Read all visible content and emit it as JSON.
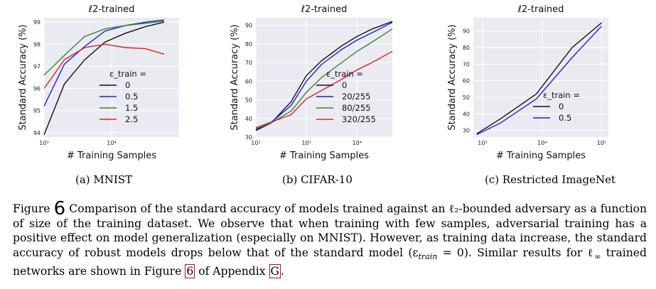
{
  "caption": {
    "label": "Figure",
    "number": "6",
    "text_before": "Comparison of the standard accuracy of models trained against an ℓ₂-bounded adversary as a function of size of the training dataset. We observe that when training with few samples, adversarial training has a positive effect on model generalization (especially on MNIST). However, as training data increase, the standard accuracy of robust models drops below that of the standard model (ε",
    "eps_sub": "train",
    "text_mid": " = 0). Similar results for ℓ",
    "inf_sub": "∞",
    "text_after": " trained networks are shown in Figure ",
    "ref_figure": "6",
    "text_after2": " of Appendix ",
    "ref_appendix": "G",
    "text_end": "."
  },
  "colors": {
    "black": "#111111",
    "blue": "#1f1fe0",
    "green": "#2e8b2e",
    "red": "#e02020",
    "plot_bg": "#eaeaf2",
    "grid": "#ffffff"
  },
  "chart_data": [
    {
      "type": "line",
      "title": "ℓ2-trained",
      "xlabel": "# Training Samples",
      "ylabel": "Standard Accuracy (%)",
      "subcaption": "(a) MNIST",
      "x_scale": "log",
      "xlim": [
        1000,
        100000
      ],
      "ylim": [
        93.8,
        99.2
      ],
      "xticks": [
        1000,
        10000
      ],
      "xtick_labels": [
        "10³",
        "10⁴"
      ],
      "yticks": [
        94,
        95,
        96,
        97,
        98,
        99
      ],
      "legend_title": "ε_train =",
      "legend_position": "bottom-right",
      "x": [
        1000,
        2000,
        4000,
        8000,
        16000,
        32000,
        60000
      ],
      "series": [
        {
          "name": "0",
          "color": "#111111",
          "values": [
            93.9,
            96.2,
            97.3,
            98.1,
            98.5,
            98.8,
            99.0
          ]
        },
        {
          "name": "0.5",
          "color": "#1f1fe0",
          "values": [
            95.2,
            97.1,
            97.9,
            98.6,
            98.85,
            99.0,
            99.1
          ]
        },
        {
          "name": "1.5",
          "color": "#2e8b2e",
          "values": [
            96.6,
            97.5,
            98.35,
            98.7,
            98.85,
            98.95,
            99.05
          ]
        },
        {
          "name": "2.5",
          "color": "#e02020",
          "values": [
            96.0,
            97.3,
            97.85,
            98.0,
            97.85,
            97.8,
            97.55
          ]
        }
      ]
    },
    {
      "type": "line",
      "title": "ℓ2-trained",
      "xlabel": "# Training Samples",
      "ylabel": "Standard Accuracy (%)",
      "subcaption": "(b) CIFAR-10",
      "x_scale": "log",
      "xlim": [
        100,
        50000
      ],
      "ylim": [
        30,
        94
      ],
      "xticks": [
        100,
        1000,
        10000
      ],
      "xtick_labels": [
        "10²",
        "10³",
        "10⁴"
      ],
      "yticks": [
        30,
        40,
        50,
        60,
        70,
        80,
        90
      ],
      "legend_title": "ε_train =",
      "legend_position": "bottom-right",
      "x": [
        100,
        200,
        500,
        1000,
        2000,
        5000,
        10000,
        20000,
        50000
      ],
      "series": [
        {
          "name": "0",
          "color": "#111111",
          "values": [
            33.5,
            37.5,
            49,
            63,
            71,
            79,
            84,
            88,
            92
          ]
        },
        {
          "name": "20/255",
          "color": "#1f1fe0",
          "values": [
            34,
            37.8,
            47,
            60,
            69,
            77,
            82,
            86,
            91.5
          ]
        },
        {
          "name": "80/255",
          "color": "#2e8b2e",
          "values": [
            34.5,
            37.5,
            44,
            54,
            62,
            70,
            76,
            81,
            88
          ]
        },
        {
          "name": "320/255",
          "color": "#e02020",
          "values": [
            35,
            38,
            42,
            50.5,
            55,
            61,
            66,
            70,
            76
          ]
        }
      ]
    },
    {
      "type": "line",
      "title": "ℓ2-trained",
      "xlabel": "# Training Samples",
      "ylabel": "Standard Accuracy (%)",
      "subcaption": "(c) Restricted ImageNet",
      "x_scale": "log",
      "xlim": [
        700,
        130000
      ],
      "ylim": [
        26,
        98
      ],
      "xticks": [
        1000,
        10000,
        100000
      ],
      "xtick_labels": [
        "10³",
        "10⁴",
        "10⁵"
      ],
      "yticks": [
        30,
        40,
        50,
        60,
        70,
        80,
        90
      ],
      "legend_title": "ε_train =",
      "legend_position": "bottom-right",
      "x": [
        800,
        2000,
        8000,
        32000,
        100000
      ],
      "series": [
        {
          "name": "0",
          "color": "#111111",
          "values": [
            28,
            37,
            52,
            80,
            95
          ]
        },
        {
          "name": "0.5",
          "color": "#1f1fe0",
          "values": [
            27.5,
            34.5,
            49,
            74,
            93
          ]
        }
      ]
    }
  ]
}
